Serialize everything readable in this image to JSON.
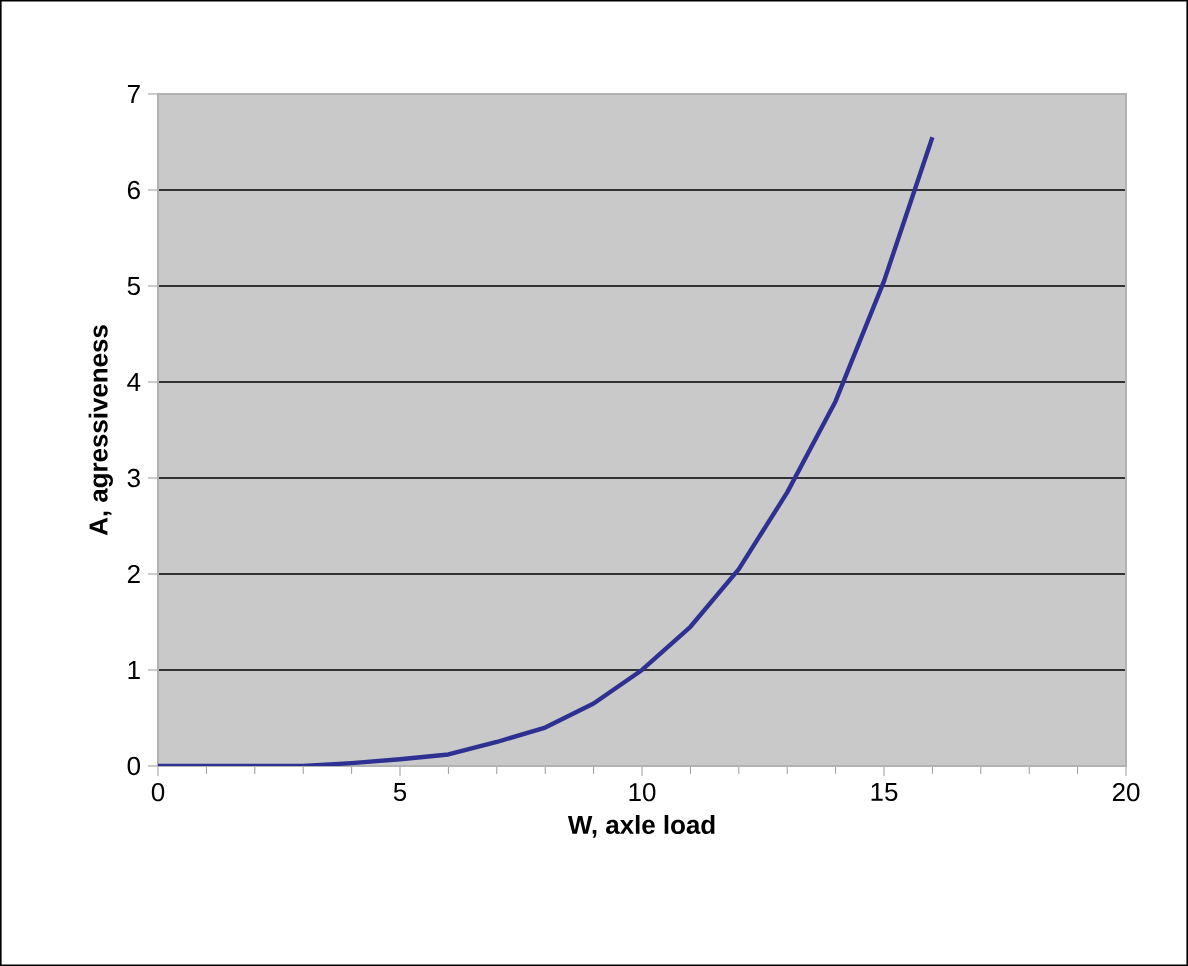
{
  "chart_data": {
    "type": "line",
    "xlabel": "W, axle load",
    "ylabel": "A, agressiveness",
    "x": [
      0,
      1,
      2,
      3,
      4,
      5,
      6,
      7,
      8,
      9,
      10,
      11,
      12,
      13,
      14,
      15,
      16
    ],
    "series": [
      {
        "color": "#2e3192",
        "values": [
          0,
          0,
          0,
          0,
          0.03,
          0.07,
          0.12,
          0.25,
          0.4,
          0.65,
          1.0,
          1.45,
          2.05,
          2.85,
          3.8,
          5.05,
          6.55
        ]
      }
    ],
    "xlim": [
      0,
      20
    ],
    "xticks": [
      0,
      5,
      10,
      15,
      20
    ],
    "ylim": [
      0,
      7
    ],
    "yticks": [
      0,
      1,
      2,
      3,
      4,
      5,
      6,
      7
    ],
    "grid": "y",
    "marker": "none",
    "line_style": "solid"
  }
}
